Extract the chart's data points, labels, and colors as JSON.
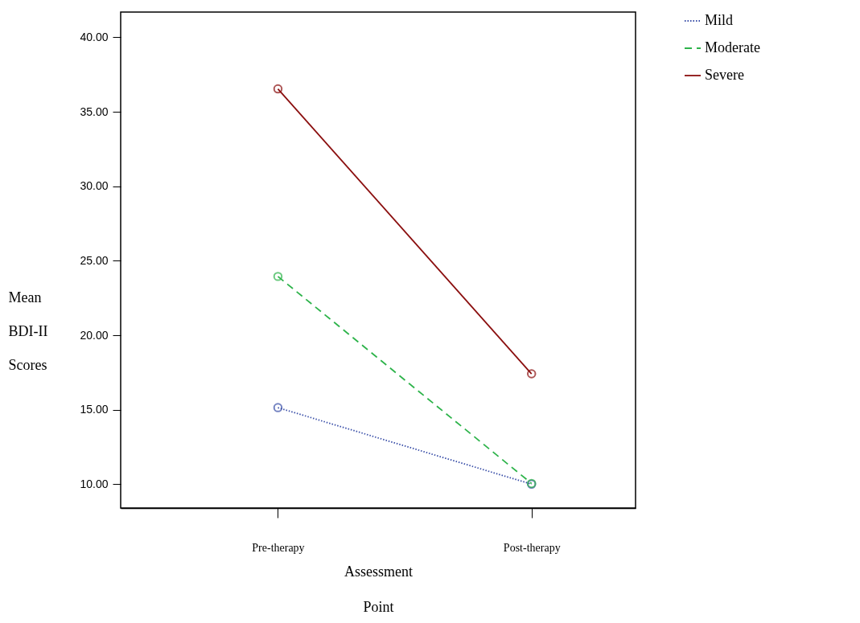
{
  "chart_data": {
    "type": "line",
    "xlabel": "Assessment Point",
    "ylabel": "Mean BDI-II Scores",
    "categories": [
      "Pre-therapy",
      "Post-therapy"
    ],
    "series": [
      {
        "name": "Mild",
        "color": "#3a4fa8",
        "line_style": "dotted",
        "values": [
          15.14,
          10.0
        ]
      },
      {
        "name": "Moderate",
        "color": "#2db34a",
        "line_style": "dashed",
        "values": [
          23.95,
          10.05
        ]
      },
      {
        "name": "Severe",
        "color": "#8b0f0f",
        "line_style": "solid",
        "values": [
          36.54,
          17.41
        ]
      }
    ],
    "ylim": [
      8.4,
      41.7
    ],
    "yticks": [
      {
        "value": 10,
        "label": "10.00"
      },
      {
        "value": 15,
        "label": "15.00"
      },
      {
        "value": 20,
        "label": "20.00"
      },
      {
        "value": 25,
        "label": "25.00"
      },
      {
        "value": 30,
        "label": "30.00"
      },
      {
        "value": 35,
        "label": "35.00"
      },
      {
        "value": 40,
        "label": "40.00"
      }
    ],
    "marker": "circle",
    "legend": "top right",
    "grid": false
  }
}
